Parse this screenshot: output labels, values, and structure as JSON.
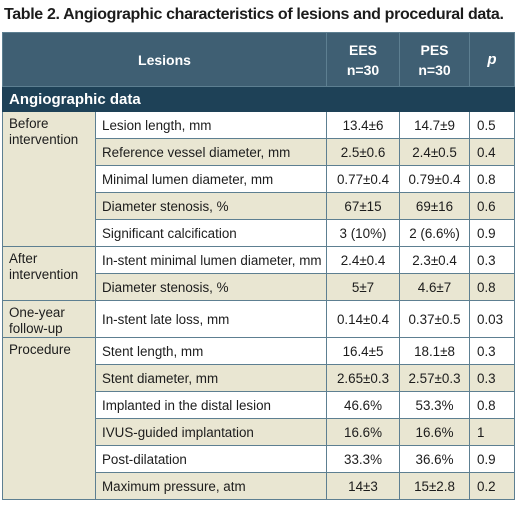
{
  "title": "Table 2. Angiographic characteristics of lesions and procedural data.",
  "table": {
    "headers": {
      "lesions": "Lesions",
      "ees_line1": "EES",
      "ees_line2": "n=30",
      "pes_line1": "PES",
      "pes_line2": "n=30",
      "p": "p"
    },
    "section_title": "Angiographic data",
    "groups": [
      {
        "label_line1": "Before",
        "label_line2": "intervention",
        "rows": [
          {
            "label": "Lesion length, mm",
            "ees": "13.4±6",
            "pes": "14.7±9",
            "p": "0.5"
          },
          {
            "label": "Reference vessel diameter, mm",
            "ees": "2.5±0.6",
            "pes": "2.4±0.5",
            "p": "0.4"
          },
          {
            "label": "Minimal lumen diameter, mm",
            "ees": "0.77±0.4",
            "pes": "0.79±0.4",
            "p": "0.8"
          },
          {
            "label": "Diameter stenosis, %",
            "ees": "67±15",
            "pes": "69±16",
            "p": "0.6"
          },
          {
            "label": "Significant calcification",
            "ees": "3 (10%)",
            "pes": "2 (6.6%)",
            "p": "0.9"
          }
        ]
      },
      {
        "label_line1": "After",
        "label_line2": "intervention",
        "rows": [
          {
            "label": "In-stent minimal lumen diameter, mm",
            "ees": "2.4±0.4",
            "pes": "2.3±0.4",
            "p": "0.3"
          },
          {
            "label": "Diameter stenosis, %",
            "ees": "5±7",
            "pes": "4.6±7",
            "p": "0.8"
          }
        ]
      },
      {
        "label_line1": "One-year",
        "label_line2": "follow-up",
        "rows": [
          {
            "label": "In-stent late loss, mm",
            "ees": "0.14±0.4",
            "pes": "0.37±0.5",
            "p": "0.03"
          }
        ]
      },
      {
        "label_line1": "Procedure",
        "label_line2": "",
        "rows": [
          {
            "label": "Stent length, mm",
            "ees": "16.4±5",
            "pes": "18.1±8",
            "p": "0.3"
          },
          {
            "label": "Stent diameter, mm",
            "ees": "2.65±0.3",
            "pes": "2.57±0.3",
            "p": "0.3"
          },
          {
            "label": "Implanted in the distal lesion",
            "ees": "46.6%",
            "pes": "53.3%",
            "p": "0.8"
          },
          {
            "label": "IVUS-guided implantation",
            "ees": "16.6%",
            "pes": "16.6%",
            "p": "1"
          },
          {
            "label": "Post-dilatation",
            "ees": "33.3%",
            "pes": "36.6%",
            "p": "0.9"
          },
          {
            "label": "Maximum pressure, atm",
            "ees": "14±3",
            "pes": "15±2.8",
            "p": "0.2"
          }
        ]
      }
    ]
  }
}
